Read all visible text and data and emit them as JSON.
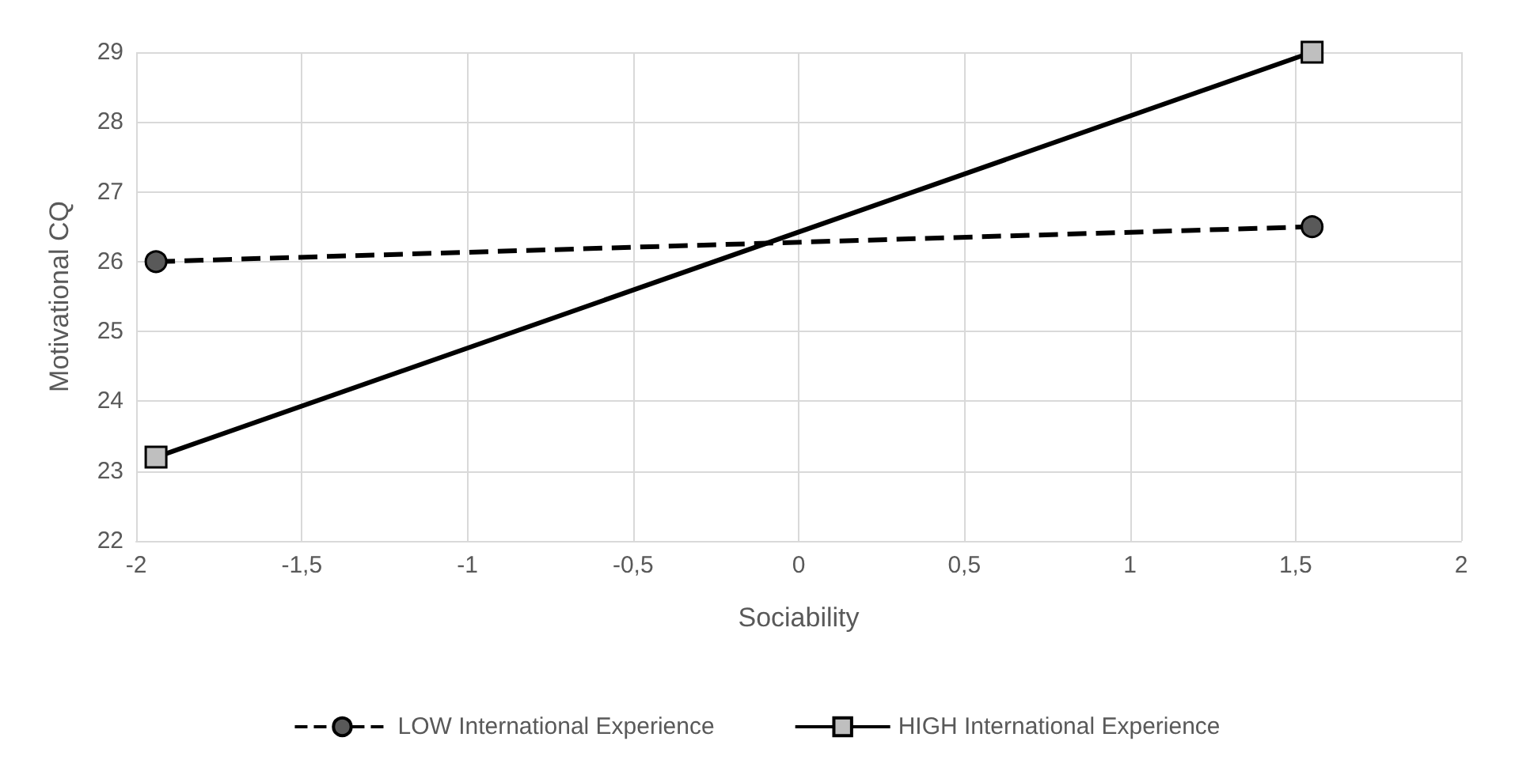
{
  "chart_data": {
    "type": "line",
    "xlabel": "Sociability",
    "ylabel": "Motivational CQ",
    "xlim": [
      -2,
      2
    ],
    "xticks": [
      -2,
      {
        "value": -1.5,
        "label": "-1,5"
      },
      -1,
      {
        "value": -0.5,
        "label": "-0,5"
      },
      0,
      {
        "value": 0.5,
        "label": "0,5"
      },
      1,
      {
        "value": 1.5,
        "label": "1,5"
      },
      2
    ],
    "x": [
      -1.94,
      1.55
    ],
    "ylim": [
      22,
      29
    ],
    "yticks": [
      22,
      23,
      24,
      25,
      26,
      27,
      28,
      29
    ],
    "grid": true,
    "legend": "bottom",
    "series": [
      {
        "name": "LOW International Experience",
        "color": "#595959",
        "values": [
          26,
          26.5
        ],
        "marker": "circle",
        "line_style": "dashed"
      },
      {
        "name": "HIGH International Experience",
        "color": "#bfbfbf",
        "values": [
          23.2,
          29
        ],
        "marker": "square",
        "line_style": "solid"
      }
    ]
  }
}
